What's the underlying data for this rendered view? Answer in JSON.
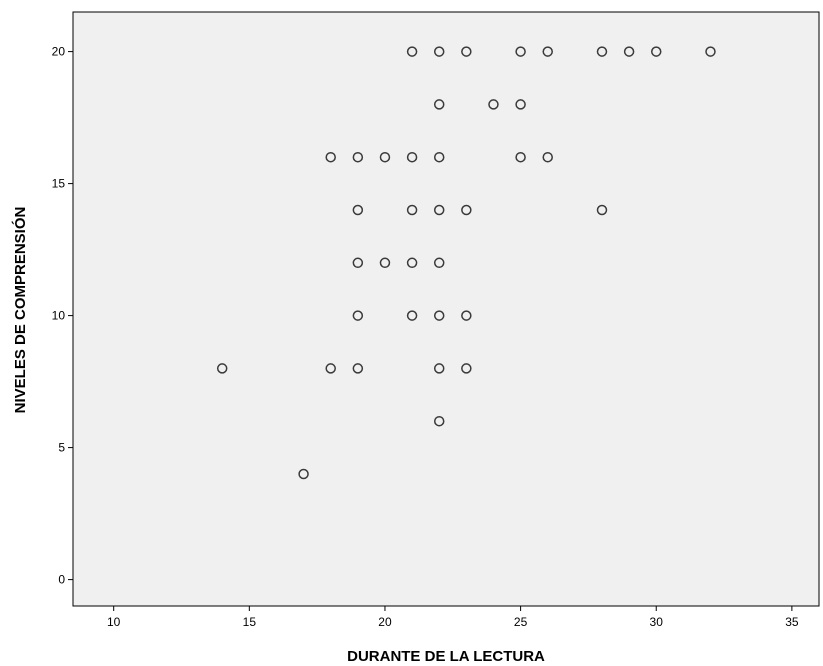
{
  "chart_data": {
    "type": "scatter",
    "title": "",
    "xlabel": "DURANTE DE LA LECTURA",
    "ylabel": "NIVELES DE COMPRENSIÓN",
    "xlim": [
      8.5,
      36
    ],
    "ylim": [
      -1,
      21.5
    ],
    "xticks": [
      10,
      15,
      20,
      25,
      30,
      35
    ],
    "yticks": [
      0,
      5,
      10,
      15,
      20
    ],
    "grid": false,
    "legend": "none",
    "colors": {
      "plot_bg": "#f0f0f0",
      "marker_stroke": "#3a3a3a",
      "axis": "#000000"
    },
    "x": [
      21,
      22,
      23,
      25,
      26,
      28,
      29,
      30,
      32,
      22,
      24,
      25,
      18,
      19,
      20,
      21,
      22,
      25,
      26,
      19,
      21,
      22,
      23,
      28,
      19,
      20,
      21,
      22,
      19,
      21,
      22,
      23,
      14,
      18,
      19,
      22,
      23,
      22,
      17
    ],
    "y": [
      20,
      20,
      20,
      20,
      20,
      20,
      20,
      20,
      20,
      18,
      18,
      18,
      16,
      16,
      16,
      16,
      16,
      16,
      16,
      14,
      14,
      14,
      14,
      14,
      12,
      12,
      12,
      12,
      10,
      10,
      10,
      10,
      8,
      8,
      8,
      8,
      8,
      6,
      4
    ]
  }
}
